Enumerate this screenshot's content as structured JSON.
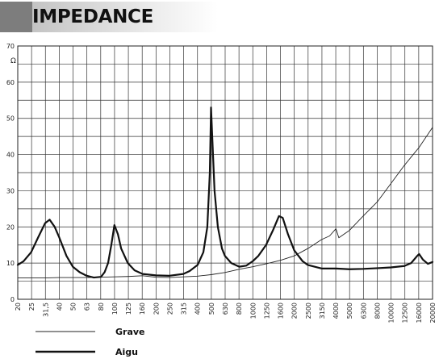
{
  "header": {
    "title": "IMPEDANCE"
  },
  "chart_data": {
    "type": "line",
    "title": "IMPEDANCE",
    "xlabel": "",
    "ylabel": "Ω",
    "x_scale": "log",
    "grid": true,
    "ylim": [
      0,
      70
    ],
    "yticks": [
      0,
      10,
      20,
      30,
      40,
      50,
      60,
      70
    ],
    "y_tick_labels": [
      "0",
      "10",
      "20",
      "30",
      "40",
      "50",
      "60",
      "70"
    ],
    "x_tick_labels": [
      "20",
      "25",
      "31,5",
      "40",
      "50",
      "63",
      "80",
      "100",
      "125",
      "160",
      "200",
      "250",
      "315",
      "400",
      "500",
      "630",
      "800",
      "1000",
      "1250",
      "1600",
      "2000",
      "2500",
      "3150",
      "4000",
      "5000",
      "6300",
      "8000",
      "10000",
      "12500",
      "16000",
      "20000"
    ],
    "legend_position": "bottom-left",
    "series": [
      {
        "name": "Grave",
        "color": "#222222",
        "line_width": "thin",
        "points": [
          [
            20,
            5.9
          ],
          [
            25,
            5.9
          ],
          [
            31.5,
            5.9
          ],
          [
            40,
            6
          ],
          [
            50,
            6
          ],
          [
            63,
            6
          ],
          [
            80,
            6.1
          ],
          [
            100,
            6.2
          ],
          [
            125,
            6.3
          ],
          [
            160,
            6.5
          ],
          [
            200,
            6.1
          ],
          [
            250,
            6
          ],
          [
            315,
            6.2
          ],
          [
            400,
            6.4
          ],
          [
            500,
            6.8
          ],
          [
            630,
            7.4
          ],
          [
            800,
            8.3
          ],
          [
            1000,
            9
          ],
          [
            1250,
            9.8
          ],
          [
            1600,
            10.8
          ],
          [
            2000,
            12
          ],
          [
            2500,
            14
          ],
          [
            3150,
            16.5
          ],
          [
            3600,
            17.5
          ],
          [
            4000,
            19.5
          ],
          [
            4200,
            17
          ],
          [
            5000,
            19
          ],
          [
            6300,
            23
          ],
          [
            8000,
            27
          ],
          [
            10000,
            32
          ],
          [
            12500,
            37
          ],
          [
            16000,
            42
          ],
          [
            20000,
            47.5
          ]
        ]
      },
      {
        "name": "Aigu",
        "color": "#111111",
        "line_width": "thick",
        "points": [
          [
            20,
            9.5
          ],
          [
            22,
            10.5
          ],
          [
            25,
            13
          ],
          [
            28,
            17
          ],
          [
            31.5,
            21
          ],
          [
            34,
            22
          ],
          [
            37,
            20
          ],
          [
            40,
            17
          ],
          [
            45,
            12
          ],
          [
            50,
            9
          ],
          [
            56,
            7.5
          ],
          [
            63,
            6.5
          ],
          [
            71,
            6
          ],
          [
            80,
            6.2
          ],
          [
            85,
            7.5
          ],
          [
            90,
            10
          ],
          [
            95,
            15
          ],
          [
            100,
            20.5
          ],
          [
            106,
            18
          ],
          [
            112,
            14
          ],
          [
            125,
            10
          ],
          [
            140,
            8
          ],
          [
            160,
            7
          ],
          [
            200,
            6.6
          ],
          [
            250,
            6.5
          ],
          [
            315,
            7
          ],
          [
            350,
            7.8
          ],
          [
            400,
            9.5
          ],
          [
            440,
            13
          ],
          [
            470,
            20
          ],
          [
            490,
            35
          ],
          [
            500,
            53
          ],
          [
            510,
            45
          ],
          [
            530,
            30
          ],
          [
            560,
            20
          ],
          [
            600,
            14
          ],
          [
            630,
            12
          ],
          [
            700,
            10
          ],
          [
            800,
            9
          ],
          [
            900,
            9.3
          ],
          [
            1000,
            10.5
          ],
          [
            1100,
            12
          ],
          [
            1250,
            15
          ],
          [
            1400,
            19
          ],
          [
            1550,
            23
          ],
          [
            1650,
            22.5
          ],
          [
            1800,
            18
          ],
          [
            2000,
            13.5
          ],
          [
            2300,
            10.5
          ],
          [
            2500,
            9.5
          ],
          [
            3150,
            8.5
          ],
          [
            4000,
            8.5
          ],
          [
            5000,
            8.3
          ],
          [
            6300,
            8.4
          ],
          [
            8000,
            8.6
          ],
          [
            10000,
            8.8
          ],
          [
            12500,
            9.2
          ],
          [
            14000,
            10
          ],
          [
            15500,
            12
          ],
          [
            16000,
            12.5
          ],
          [
            17000,
            11
          ],
          [
            18500,
            9.8
          ],
          [
            20000,
            10.3
          ]
        ]
      }
    ]
  }
}
